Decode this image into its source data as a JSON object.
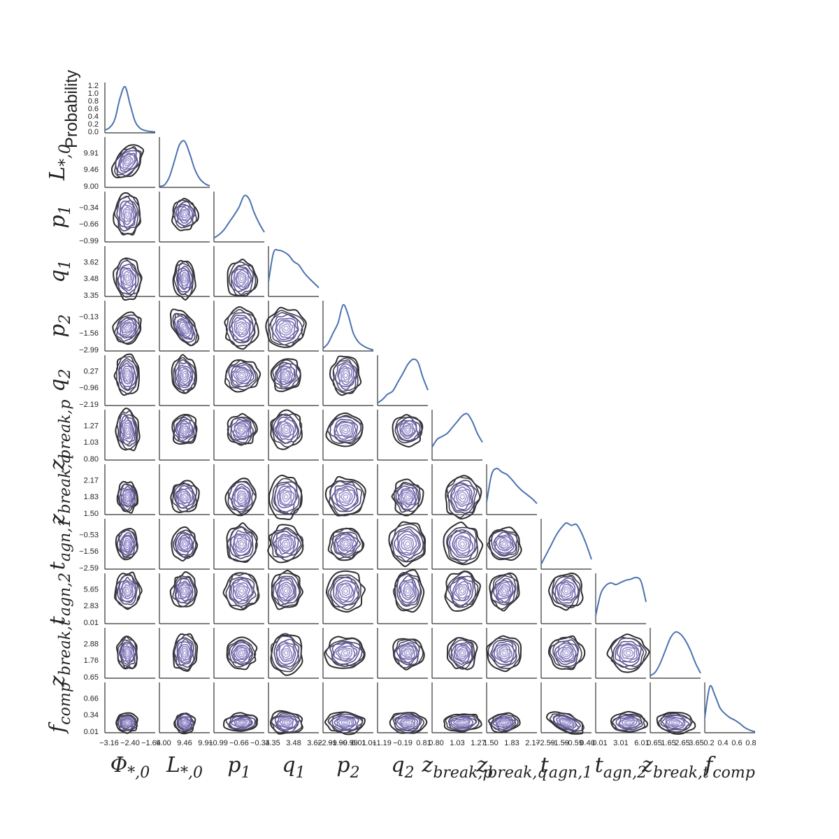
{
  "chart_data": {
    "type": "corner",
    "title": "",
    "ylabel_top": "Probability",
    "parameters": [
      "Φ*,0",
      "L*,0",
      "p1",
      "q1",
      "p2",
      "q2",
      "zbreak,p",
      "zbreak,q",
      "tagn,1",
      "tagn,2",
      "zbreak,t",
      "fcomp"
    ],
    "colors": {
      "kde_line": "#4c72b0",
      "contour_outer": "#2d2d2d",
      "contour_inner": "#b5b3de",
      "contour_mid": "#6a5fa6"
    },
    "first_diag_yticks": [
      "0.0",
      "0.2",
      "0.4",
      "0.6",
      "0.8",
      "1.0",
      "1.2"
    ],
    "y_ticks": [
      [
        "9.00",
        "9.46",
        "9.91"
      ],
      [
        "-0.99",
        "-0.66",
        "-0.34"
      ],
      [
        "3.35",
        "3.48",
        "3.62"
      ],
      [
        "-2.99",
        "-1.56",
        "-0.13"
      ],
      [
        "-2.19",
        "-0.96",
        "0.27"
      ],
      [
        "0.80",
        "1.03",
        "1.27"
      ],
      [
        "1.50",
        "1.83",
        "2.17"
      ],
      [
        "-2.59",
        "-1.56",
        "-0.53"
      ],
      [
        "0.01",
        "2.83",
        "5.65"
      ],
      [
        "0.65",
        "1.76",
        "2.88"
      ],
      [
        "0.01",
        "0.34",
        "0.66"
      ]
    ],
    "x_ticks": [
      [
        "-3.16",
        "-2.40",
        "-1.64"
      ],
      [
        "9.00",
        "9.46",
        "9.91"
      ],
      [
        "-0.99",
        "-0.66",
        "-0.34"
      ],
      [
        "3.35",
        "3.48",
        "3.62"
      ],
      [
        "-2.99",
        "-1.99",
        "-0.99",
        "0.01",
        "1.01"
      ],
      [
        "-1.19",
        "-0.19",
        "0.81"
      ],
      [
        "0.80",
        "1.03",
        "1.27"
      ],
      [
        "1.50",
        "1.83",
        "2.17"
      ],
      [
        "-2.59",
        "-1.59",
        "-0.59",
        "0.40"
      ],
      [
        "0.01",
        "3.01",
        "6.01"
      ],
      [
        "0.65",
        "1.65",
        "2.65",
        "3.65"
      ],
      [
        "0.2",
        "0.4",
        "0.6",
        "0.8"
      ]
    ],
    "marginals": [
      {
        "param": "Φ*,0",
        "x": [
          0,
          0.1,
          0.2,
          0.3,
          0.4,
          0.5,
          0.6,
          0.7,
          0.8,
          0.9,
          1.0
        ],
        "density": [
          0.06,
          0.12,
          0.3,
          0.75,
          1.0,
          0.62,
          0.25,
          0.1,
          0.05,
          0.03,
          0.02
        ]
      },
      {
        "param": "L*,0",
        "x": [
          0,
          0.1,
          0.2,
          0.3,
          0.4,
          0.5,
          0.6,
          0.7,
          0.8,
          0.9,
          1.0
        ],
        "density": [
          0.02,
          0.05,
          0.22,
          0.55,
          0.88,
          0.95,
          0.7,
          0.38,
          0.18,
          0.08,
          0.03
        ]
      },
      {
        "param": "p1",
        "x": [
          0,
          0.1,
          0.2,
          0.3,
          0.4,
          0.5,
          0.6,
          0.7,
          0.8,
          0.9,
          1.0
        ],
        "density": [
          0.08,
          0.15,
          0.25,
          0.4,
          0.55,
          0.72,
          0.95,
          0.88,
          0.6,
          0.38,
          0.2
        ]
      },
      {
        "param": "q1",
        "x": [
          0,
          0.1,
          0.2,
          0.3,
          0.4,
          0.5,
          0.6,
          0.7,
          0.8,
          0.9,
          1.0
        ],
        "density": [
          0.3,
          0.9,
          0.95,
          0.92,
          0.85,
          0.72,
          0.65,
          0.5,
          0.38,
          0.28,
          0.18
        ]
      },
      {
        "param": "p2",
        "x": [
          0,
          0.1,
          0.2,
          0.3,
          0.4,
          0.5,
          0.6,
          0.7,
          0.8,
          0.9,
          1.0
        ],
        "density": [
          0.05,
          0.15,
          0.35,
          0.55,
          0.9,
          0.7,
          0.35,
          0.18,
          0.1,
          0.05,
          0.02
        ]
      },
      {
        "param": "q2",
        "x": [
          0,
          0.1,
          0.2,
          0.3,
          0.4,
          0.5,
          0.6,
          0.7,
          0.8,
          0.9,
          1.0
        ],
        "density": [
          0.05,
          0.12,
          0.22,
          0.28,
          0.45,
          0.62,
          0.8,
          0.9,
          0.85,
          0.55,
          0.3
        ]
      },
      {
        "param": "zbreak,p",
        "x": [
          0,
          0.1,
          0.2,
          0.3,
          0.4,
          0.5,
          0.6,
          0.7,
          0.8,
          0.9,
          1.0
        ],
        "density": [
          0.22,
          0.35,
          0.4,
          0.45,
          0.55,
          0.65,
          0.75,
          0.78,
          0.65,
          0.45,
          0.3
        ]
      },
      {
        "param": "zbreak,q",
        "x": [
          0,
          0.1,
          0.2,
          0.3,
          0.4,
          0.5,
          0.6,
          0.7,
          0.8,
          0.9,
          1.0
        ],
        "density": [
          0.25,
          0.8,
          0.92,
          0.85,
          0.8,
          0.7,
          0.58,
          0.48,
          0.4,
          0.32,
          0.22
        ]
      },
      {
        "param": "tagn,1",
        "x": [
          0,
          0.1,
          0.2,
          0.3,
          0.4,
          0.5,
          0.6,
          0.7,
          0.8,
          0.9,
          1.0
        ],
        "density": [
          0.1,
          0.3,
          0.5,
          0.7,
          0.85,
          0.95,
          0.9,
          0.92,
          0.75,
          0.5,
          0.2
        ]
      },
      {
        "param": "tagn,2",
        "x": [
          0,
          0.1,
          0.2,
          0.3,
          0.4,
          0.5,
          0.6,
          0.7,
          0.8,
          0.9,
          1.0
        ],
        "density": [
          0.15,
          0.55,
          0.7,
          0.75,
          0.72,
          0.76,
          0.8,
          0.82,
          0.85,
          0.78,
          0.4
        ]
      },
      {
        "param": "zbreak,t",
        "x": [
          0,
          0.1,
          0.2,
          0.3,
          0.4,
          0.5,
          0.6,
          0.7,
          0.8,
          0.9,
          1.0
        ],
        "density": [
          0.05,
          0.12,
          0.3,
          0.55,
          0.8,
          0.92,
          0.88,
          0.75,
          0.55,
          0.3,
          0.1
        ]
      },
      {
        "param": "fcomp",
        "x": [
          0,
          0.1,
          0.2,
          0.3,
          0.4,
          0.5,
          0.6,
          0.7,
          0.8,
          0.9,
          1.0
        ],
        "density": [
          0.3,
          0.92,
          0.75,
          0.5,
          0.38,
          0.3,
          0.25,
          0.18,
          0.1,
          0.05,
          0.02
        ]
      }
    ]
  }
}
